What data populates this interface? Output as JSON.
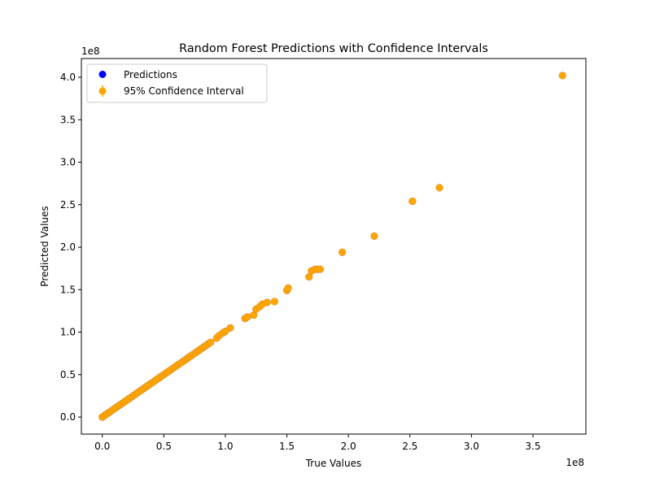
{
  "chart_data": {
    "type": "scatter",
    "title": "Random Forest Predictions with Confidence Intervals",
    "xlabel": "True Values",
    "ylabel": "Predicted Values",
    "x_offset_label": "1e8",
    "y_offset_label": "1e8",
    "xlim": [
      -0.17,
      3.93
    ],
    "ylim": [
      -0.2,
      4.22
    ],
    "x_ticks": [
      0.0,
      0.5,
      1.0,
      1.5,
      2.0,
      2.5,
      3.0,
      3.5
    ],
    "x_tick_labels": [
      "0.0",
      "0.5",
      "1.0",
      "1.5",
      "2.0",
      "2.5",
      "3.0",
      "3.5"
    ],
    "y_ticks": [
      0.0,
      0.5,
      1.0,
      1.5,
      2.0,
      2.5,
      3.0,
      3.5,
      4.0
    ],
    "y_tick_labels": [
      "0.0",
      "0.5",
      "1.0",
      "1.5",
      "2.0",
      "2.5",
      "3.0",
      "3.5",
      "4.0"
    ],
    "grid": false,
    "legend_position": "top-left",
    "series": [
      {
        "name": "Predictions",
        "color": "#0000ff",
        "marker": "circle"
      },
      {
        "name": "95% Confidence Interval",
        "color": "#ffa500",
        "marker": "circle-errorbar",
        "points": [
          [
            0.0,
            0.0
          ],
          [
            0.02,
            0.02
          ],
          [
            0.04,
            0.04
          ],
          [
            0.06,
            0.06
          ],
          [
            0.08,
            0.08
          ],
          [
            0.1,
            0.1
          ],
          [
            0.12,
            0.12
          ],
          [
            0.14,
            0.14
          ],
          [
            0.16,
            0.16
          ],
          [
            0.18,
            0.18
          ],
          [
            0.2,
            0.2
          ],
          [
            0.22,
            0.22
          ],
          [
            0.24,
            0.24
          ],
          [
            0.26,
            0.26
          ],
          [
            0.28,
            0.28
          ],
          [
            0.3,
            0.3
          ],
          [
            0.32,
            0.32
          ],
          [
            0.34,
            0.34
          ],
          [
            0.36,
            0.36
          ],
          [
            0.38,
            0.38
          ],
          [
            0.4,
            0.4
          ],
          [
            0.42,
            0.42
          ],
          [
            0.44,
            0.44
          ],
          [
            0.46,
            0.46
          ],
          [
            0.48,
            0.48
          ],
          [
            0.5,
            0.5
          ],
          [
            0.52,
            0.52
          ],
          [
            0.54,
            0.54
          ],
          [
            0.56,
            0.56
          ],
          [
            0.58,
            0.58
          ],
          [
            0.6,
            0.6
          ],
          [
            0.62,
            0.62
          ],
          [
            0.64,
            0.64
          ],
          [
            0.66,
            0.66
          ],
          [
            0.68,
            0.68
          ],
          [
            0.7,
            0.7
          ],
          [
            0.72,
            0.72
          ],
          [
            0.74,
            0.74
          ],
          [
            0.76,
            0.76
          ],
          [
            0.78,
            0.78
          ],
          [
            0.8,
            0.8
          ],
          [
            0.82,
            0.82
          ],
          [
            0.84,
            0.84
          ],
          [
            0.86,
            0.86
          ],
          [
            0.88,
            0.88
          ],
          [
            0.93,
            0.93
          ],
          [
            0.95,
            0.96
          ],
          [
            0.98,
            0.99
          ],
          [
            1.0,
            1.01
          ],
          [
            1.04,
            1.05
          ],
          [
            1.16,
            1.16
          ],
          [
            1.18,
            1.18
          ],
          [
            1.23,
            1.2
          ],
          [
            1.25,
            1.27
          ],
          [
            1.28,
            1.3
          ],
          [
            1.3,
            1.33
          ],
          [
            1.34,
            1.35
          ],
          [
            1.4,
            1.36
          ],
          [
            1.5,
            1.49
          ],
          [
            1.51,
            1.52
          ],
          [
            1.68,
            1.65
          ],
          [
            1.7,
            1.72
          ],
          [
            1.73,
            1.74
          ],
          [
            1.75,
            1.74
          ],
          [
            1.77,
            1.74
          ],
          [
            1.95,
            1.94
          ],
          [
            2.21,
            2.13
          ],
          [
            2.52,
            2.54
          ],
          [
            2.74,
            2.7
          ],
          [
            3.74,
            4.02
          ]
        ]
      }
    ]
  }
}
